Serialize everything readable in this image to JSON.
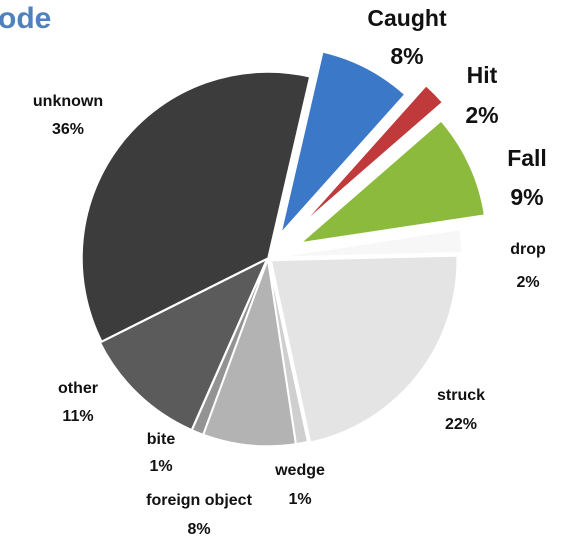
{
  "chart_data": {
    "type": "pie",
    "title": "ode",
    "categories": [
      "Caught",
      "Hit",
      "Fall",
      "drop",
      "struck",
      "wedge",
      "foreign object",
      "bite",
      "other",
      "unknown"
    ],
    "values": [
      8,
      2,
      9,
      2,
      22,
      1,
      8,
      1,
      11,
      36
    ],
    "value_labels": [
      "8%",
      "2%",
      "9%",
      "2%",
      "22%",
      "1%",
      "8%",
      "1%",
      "11%",
      "36%"
    ],
    "colors": [
      "#3b78c8",
      "#c0393b",
      "#8cba3c",
      "#f7f7f7",
      "#e4e4e4",
      "#cfcfcf",
      "#b3b3b3",
      "#939393",
      "#5b5b5b",
      "#3c3c3c"
    ]
  }
}
